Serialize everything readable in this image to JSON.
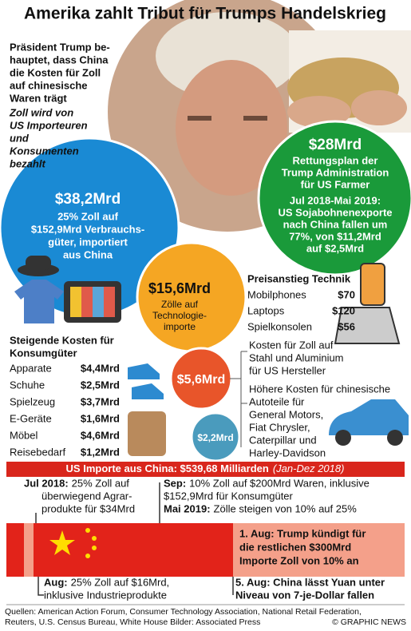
{
  "title": "Amerika zahlt Tribut für Trumps Handelskrieg",
  "claim": {
    "lines": [
      "Präsident Trump be-",
      "hauptet, dass China",
      "die Kosten für Zoll",
      "auf chinesische",
      "Waren trägt"
    ]
  },
  "counter": {
    "lines": [
      "Zoll wird von",
      "US Importeuren",
      "und",
      "Konsumenten",
      "bezahlt"
    ]
  },
  "bubbles": [
    {
      "amount": "$38,2Mrd",
      "lines": [
        "25% Zoll auf",
        "$152,9Mrd Verbrauchs-",
        "güter, importiert",
        "aus China"
      ]
    },
    {
      "amount": "$28Mrd",
      "lines": [
        "Rettungsplan der",
        "Trump Administration",
        "für US Farmer"
      ],
      "note": [
        "Jul 2018-Mai 2019:",
        "US Sojabohnenexporte",
        "nach China fallen um",
        "77%, von $11,2Mrd",
        "auf $2,5Mrd"
      ]
    },
    {
      "amount": "$15,6Mrd",
      "lines": [
        "Zölle auf",
        "Technologie-",
        "importe"
      ]
    },
    {
      "amount": "$5,6Mrd"
    },
    {
      "amount": "$2,2Mrd"
    }
  ],
  "tech": {
    "heading": "Preisanstieg Technik",
    "rows": [
      [
        "Mobilphones",
        "$70"
      ],
      [
        "Laptops",
        "$120"
      ],
      [
        "Spielkonsolen",
        "$56"
      ]
    ]
  },
  "steel": {
    "lines": [
      "Kosten für Zoll auf",
      "Stahl und Aluminium",
      "für US Hersteller"
    ]
  },
  "autos": {
    "lines": [
      "Höhere Kosten für chinesische",
      "Autoteile für",
      "General Motors,",
      "Fiat Chrysler,",
      "Caterpillar und",
      "Harley-Davidson"
    ]
  },
  "consumer": {
    "heading": [
      "Steigende Kosten für",
      "Konsumgüter"
    ],
    "rows": [
      [
        "Apparate",
        "$4,4Mrd"
      ],
      [
        "Schuhe",
        "$2,5Mrd"
      ],
      [
        "Spielzeug",
        "$3,7Mrd"
      ],
      [
        "E-Geräte",
        "$1,6Mrd"
      ],
      [
        "Möbel",
        "$4,6Mrd"
      ],
      [
        "Reisebedarf",
        "$1,2Mrd"
      ]
    ]
  },
  "banner": {
    "text": "US Importe aus China: $539,68 Milliarden",
    "period": "(Jan-Dez 2018)"
  },
  "timeline": {
    "jul": {
      "label": "Jul 2018:",
      "lines": [
        "25% Zoll auf",
        "überwiegend Agrar-",
        "produkte für $34Mrd"
      ]
    },
    "sep": {
      "label": "Sep:",
      "lines": [
        "10% Zoll auf $200Mrd Waren, inklusive",
        "$152,9Mrd für Konsumgüter"
      ]
    },
    "may": {
      "label": "Mai 2019:",
      "lines": [
        "Zölle steigen von 10% auf  25%"
      ]
    },
    "aug1": {
      "lines": [
        "1. Aug: Trump kündigt für",
        "die restlichen $300Mrd",
        "Importe Zoll von 10% an"
      ]
    },
    "aug": {
      "label": "Aug:",
      "lines": [
        "25% Zoll auf $16Mrd,",
        "inklusive Industrieprodukte"
      ]
    },
    "aug5": {
      "lines": [
        "5. Aug: China lässt Yuan unter",
        "Niveau von 7-je-Dollar fallen"
      ]
    }
  },
  "footer": {
    "sources": [
      "Quellen: American Action Forum,  Consumer Technology Association, National Retail Federation,",
      "Reuters, U.S. Census Bureau, White House   Bilder: Associated Press"
    ],
    "credit": "© GRAPHIC NEWS"
  }
}
